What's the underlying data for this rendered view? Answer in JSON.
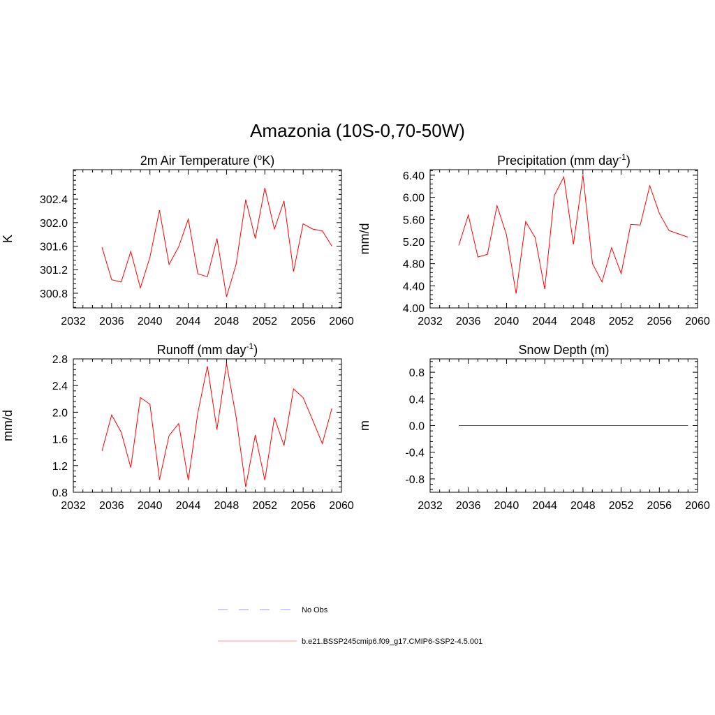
{
  "title": "Amazonia (10S-0,70-50W)",
  "colors": {
    "series": "#ff0000",
    "obs": "#9999ff",
    "axis": "#000000"
  },
  "chart_data": [
    {
      "id": "temp",
      "type": "line",
      "title_main": "2m Air Temperature (",
      "title_sup": "o",
      "title_end": "K)",
      "ylabel": "K",
      "xlim": [
        2032,
        2060
      ],
      "ylim": [
        300.55,
        302.9
      ],
      "xticks": [
        "2032",
        "2036",
        "2040",
        "2044",
        "2048",
        "2052",
        "2056",
        "2060"
      ],
      "yticks": [
        "300.8",
        "301.2",
        "301.6",
        "302.0",
        "302.4"
      ],
      "x": [
        2035,
        2036,
        2037,
        2038,
        2039,
        2040,
        2041,
        2042,
        2043,
        2044,
        2045,
        2046,
        2047,
        2048,
        2049,
        2050,
        2051,
        2052,
        2053,
        2054,
        2055,
        2056,
        2057,
        2058,
        2059
      ],
      "series": [
        {
          "name": "b.e21.BSSP245cmip6.f09_g17.CMIP6-SSP2-4.5.001",
          "values": [
            301.58,
            301.03,
            300.99,
            301.51,
            300.89,
            301.41,
            302.21,
            301.29,
            301.59,
            302.06,
            301.13,
            301.08,
            301.73,
            300.74,
            301.29,
            302.39,
            301.73,
            302.59,
            301.89,
            302.37,
            301.17,
            301.98,
            301.89,
            301.86,
            301.6
          ]
        }
      ]
    },
    {
      "id": "precip",
      "type": "line",
      "title_main": "Precipitation (mm day",
      "title_sup": "-1",
      "title_end": ")",
      "ylabel": "mm/d",
      "xlim": [
        2032,
        2060
      ],
      "ylim": [
        4.0,
        6.5
      ],
      "xticks": [
        "2032",
        "2036",
        "2040",
        "2044",
        "2048",
        "2052",
        "2056",
        "2060"
      ],
      "yticks": [
        "4.00",
        "4.40",
        "4.80",
        "5.20",
        "5.60",
        "6.00",
        "6.40"
      ],
      "x": [
        2035,
        2036,
        2037,
        2038,
        2039,
        2040,
        2041,
        2042,
        2043,
        2044,
        2045,
        2046,
        2047,
        2048,
        2049,
        2050,
        2051,
        2052,
        2053,
        2054,
        2055,
        2056,
        2057,
        2058,
        2059
      ],
      "series": [
        {
          "name": "b.e21.BSSP245cmip6.f09_g17.CMIP6-SSP2-4.5.001",
          "values": [
            5.13,
            5.68,
            4.92,
            4.97,
            5.85,
            5.32,
            4.26,
            5.56,
            5.27,
            4.34,
            6.03,
            6.37,
            5.15,
            6.4,
            4.8,
            4.47,
            5.09,
            4.62,
            5.51,
            5.5,
            6.21,
            5.71,
            5.4,
            5.34,
            5.28
          ]
        }
      ]
    },
    {
      "id": "runoff",
      "type": "line",
      "title_main": "Runoff (mm day",
      "title_sup": "-1",
      "title_end": ")",
      "ylabel": "mm/d",
      "xlim": [
        2032,
        2060
      ],
      "ylim": [
        0.8,
        2.8
      ],
      "xticks": [
        "2032",
        "2036",
        "2040",
        "2044",
        "2048",
        "2052",
        "2056",
        "2060"
      ],
      "yticks": [
        "0.8",
        "1.2",
        "1.6",
        "2.0",
        "2.4",
        "2.8"
      ],
      "x": [
        2035,
        2036,
        2037,
        2038,
        2039,
        2040,
        2041,
        2042,
        2043,
        2044,
        2045,
        2046,
        2047,
        2048,
        2049,
        2050,
        2051,
        2052,
        2053,
        2054,
        2055,
        2056,
        2057,
        2058,
        2059
      ],
      "series": [
        {
          "name": "b.e21.BSSP245cmip6.f09_g17.CMIP6-SSP2-4.5.001",
          "values": [
            1.42,
            1.96,
            1.7,
            1.17,
            2.22,
            2.12,
            0.99,
            1.65,
            1.83,
            0.98,
            1.99,
            2.69,
            1.74,
            2.73,
            1.93,
            0.88,
            1.66,
            0.98,
            1.92,
            1.5,
            2.35,
            2.22,
            1.88,
            1.53,
            2.06
          ]
        }
      ]
    },
    {
      "id": "snow",
      "type": "line",
      "title_main": "Snow Depth (m)",
      "title_sup": "",
      "title_end": "",
      "ylabel": "m",
      "xlim": [
        2032,
        2060
      ],
      "ylim": [
        -1.0,
        1.0
      ],
      "xticks": [
        "2032",
        "2036",
        "2040",
        "2044",
        "2048",
        "2052",
        "2056",
        "2060"
      ],
      "yticks": [
        "-0.8",
        "-0.4",
        "0.0",
        "0.4",
        "0.8"
      ],
      "x": [
        2035,
        2036,
        2037,
        2038,
        2039,
        2040,
        2041,
        2042,
        2043,
        2044,
        2045,
        2046,
        2047,
        2048,
        2049,
        2050,
        2051,
        2052,
        2053,
        2054,
        2055,
        2056,
        2057,
        2058,
        2059
      ],
      "series": [
        {
          "name": "b.e21.BSSP245cmip6.f09_g17.CMIP6-SSP2-4.5.001",
          "values": [
            0,
            0,
            0,
            0,
            0,
            0,
            0,
            0,
            0,
            0,
            0,
            0,
            0,
            0,
            0,
            0,
            0,
            0,
            0,
            0,
            0,
            0,
            0,
            0,
            0
          ]
        }
      ]
    }
  ],
  "legend": [
    {
      "label": "No Obs",
      "style": "dashed",
      "color": "#9999ff"
    },
    {
      "label": "b.e21.BSSP245cmip6.f09_g17.CMIP6-SSP2-4.5.001",
      "style": "solid",
      "color": "#ff0000"
    }
  ]
}
